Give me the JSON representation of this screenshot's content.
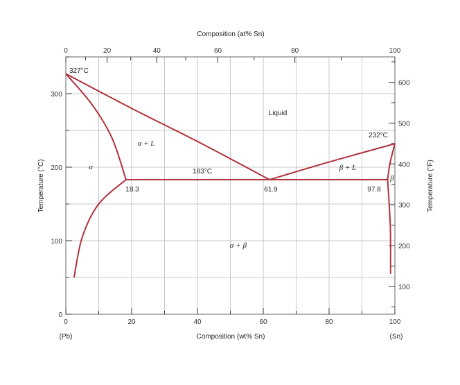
{
  "axes": {
    "top_title": "Composition (at% Sn)",
    "bottom_title": "Composition (wt% Sn)",
    "left_title": "Temperature (°C)",
    "right_title": "Temperature (°F)",
    "bottom_ticks": [
      0,
      20,
      40,
      60,
      80,
      100
    ],
    "top_ticks": [
      0,
      20,
      40,
      60,
      80,
      100
    ],
    "left_ticks": [
      0,
      100,
      200,
      300
    ],
    "right_ticks": [
      100,
      200,
      300,
      400,
      500,
      600
    ],
    "end_left": "(Pb)",
    "end_right": "(Sn)"
  },
  "regions": {
    "liquid": "Liquid",
    "alpha_L": "α + L",
    "beta_L": "β + L",
    "alpha": "α",
    "beta": "β",
    "alpha_beta": "α + β"
  },
  "annotations": {
    "pb_melting": "327°C",
    "sn_melting": "232°C",
    "eutectic_temp": "183°C",
    "alpha_limit": "18.3",
    "eutectic_comp": "61.9",
    "beta_limit": "97.8"
  },
  "colors": {
    "phase_boundary": "#b0313a",
    "grid": "#c8c8c8"
  },
  "chart_data": {
    "type": "phase-diagram",
    "x_units": "wt% Sn",
    "y_units": "°C",
    "xlim": [
      0,
      100
    ],
    "ylim": [
      0,
      350
    ],
    "pb_melting_point": {
      "x": 0,
      "y": 327
    },
    "sn_melting_point": {
      "x": 100,
      "y": 232
    },
    "eutectic": {
      "x": 61.9,
      "y": 183
    },
    "alpha_max_solubility": {
      "x": 18.3,
      "y": 183
    },
    "beta_max_solubility": {
      "x": 97.8,
      "y": 183
    },
    "boundaries": [
      {
        "name": "liquidus-left",
        "points": [
          [
            0,
            327
          ],
          [
            20,
            280
          ],
          [
            40,
            235
          ],
          [
            61.9,
            183
          ]
        ]
      },
      {
        "name": "liquidus-right",
        "points": [
          [
            61.9,
            183
          ],
          [
            80,
            207
          ],
          [
            100,
            232
          ]
        ]
      },
      {
        "name": "solidus-left",
        "points": [
          [
            0,
            327
          ],
          [
            8,
            285
          ],
          [
            14,
            240
          ],
          [
            18.3,
            183
          ]
        ]
      },
      {
        "name": "solvus-left",
        "points": [
          [
            18.3,
            183
          ],
          [
            10,
            150
          ],
          [
            5,
            105
          ],
          [
            2.5,
            50
          ]
        ]
      },
      {
        "name": "solvus-right",
        "points": [
          [
            97.8,
            183
          ],
          [
            98.6,
            120
          ],
          [
            98.7,
            55
          ]
        ]
      },
      {
        "name": "solidus-right",
        "points": [
          [
            97.8,
            183
          ],
          [
            98.5,
            205
          ],
          [
            100,
            232
          ]
        ]
      },
      {
        "name": "eutectic-isotherm",
        "points": [
          [
            18.3,
            183
          ],
          [
            97.8,
            183
          ]
        ]
      }
    ]
  }
}
